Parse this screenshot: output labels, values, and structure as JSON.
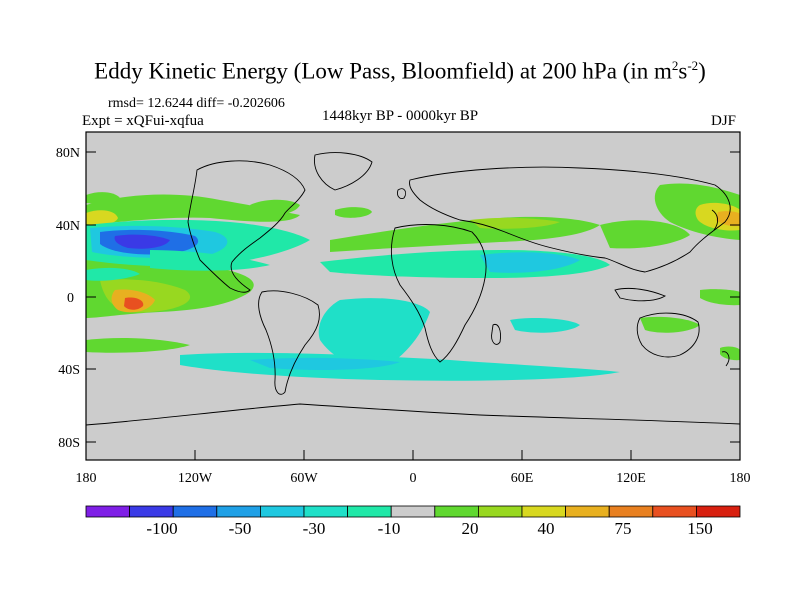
{
  "title": {
    "main": "Eddy Kinetic Energy (Low Pass, Bloomfield) at 200 hPa (in m",
    "sup1": "2",
    "mid": "s",
    "sup2": "-2",
    "end": ")"
  },
  "stats": "rmsd= 12.6244 diff= -0.202606",
  "experiment": "Expt = xQFui-xqfua",
  "period": "1448kyr BP - 0000kyr BP",
  "season": "DJF",
  "axes": {
    "lat_labels": [
      "80N",
      "40N",
      "0",
      "40S",
      "80S"
    ],
    "lon_labels": [
      "180",
      "120W",
      "60W",
      "0",
      "60E",
      "120E",
      "180"
    ]
  },
  "colorbar": {
    "labels": [
      "-100",
      "-50",
      "-30",
      "-10",
      "20",
      "40",
      "75",
      "150"
    ],
    "colors": [
      "#7f1fe6",
      "#3a3ae6",
      "#1f6fe6",
      "#1fa0e6",
      "#1fc8e0",
      "#1fe0c8",
      "#20e8a8",
      "#cccccc",
      "#60d830",
      "#98d820",
      "#d8d820",
      "#e8b020",
      "#e88020",
      "#e85020",
      "#d82010"
    ]
  },
  "colors": {
    "land_ocean": "#cccccc",
    "frame": "#000000"
  }
}
